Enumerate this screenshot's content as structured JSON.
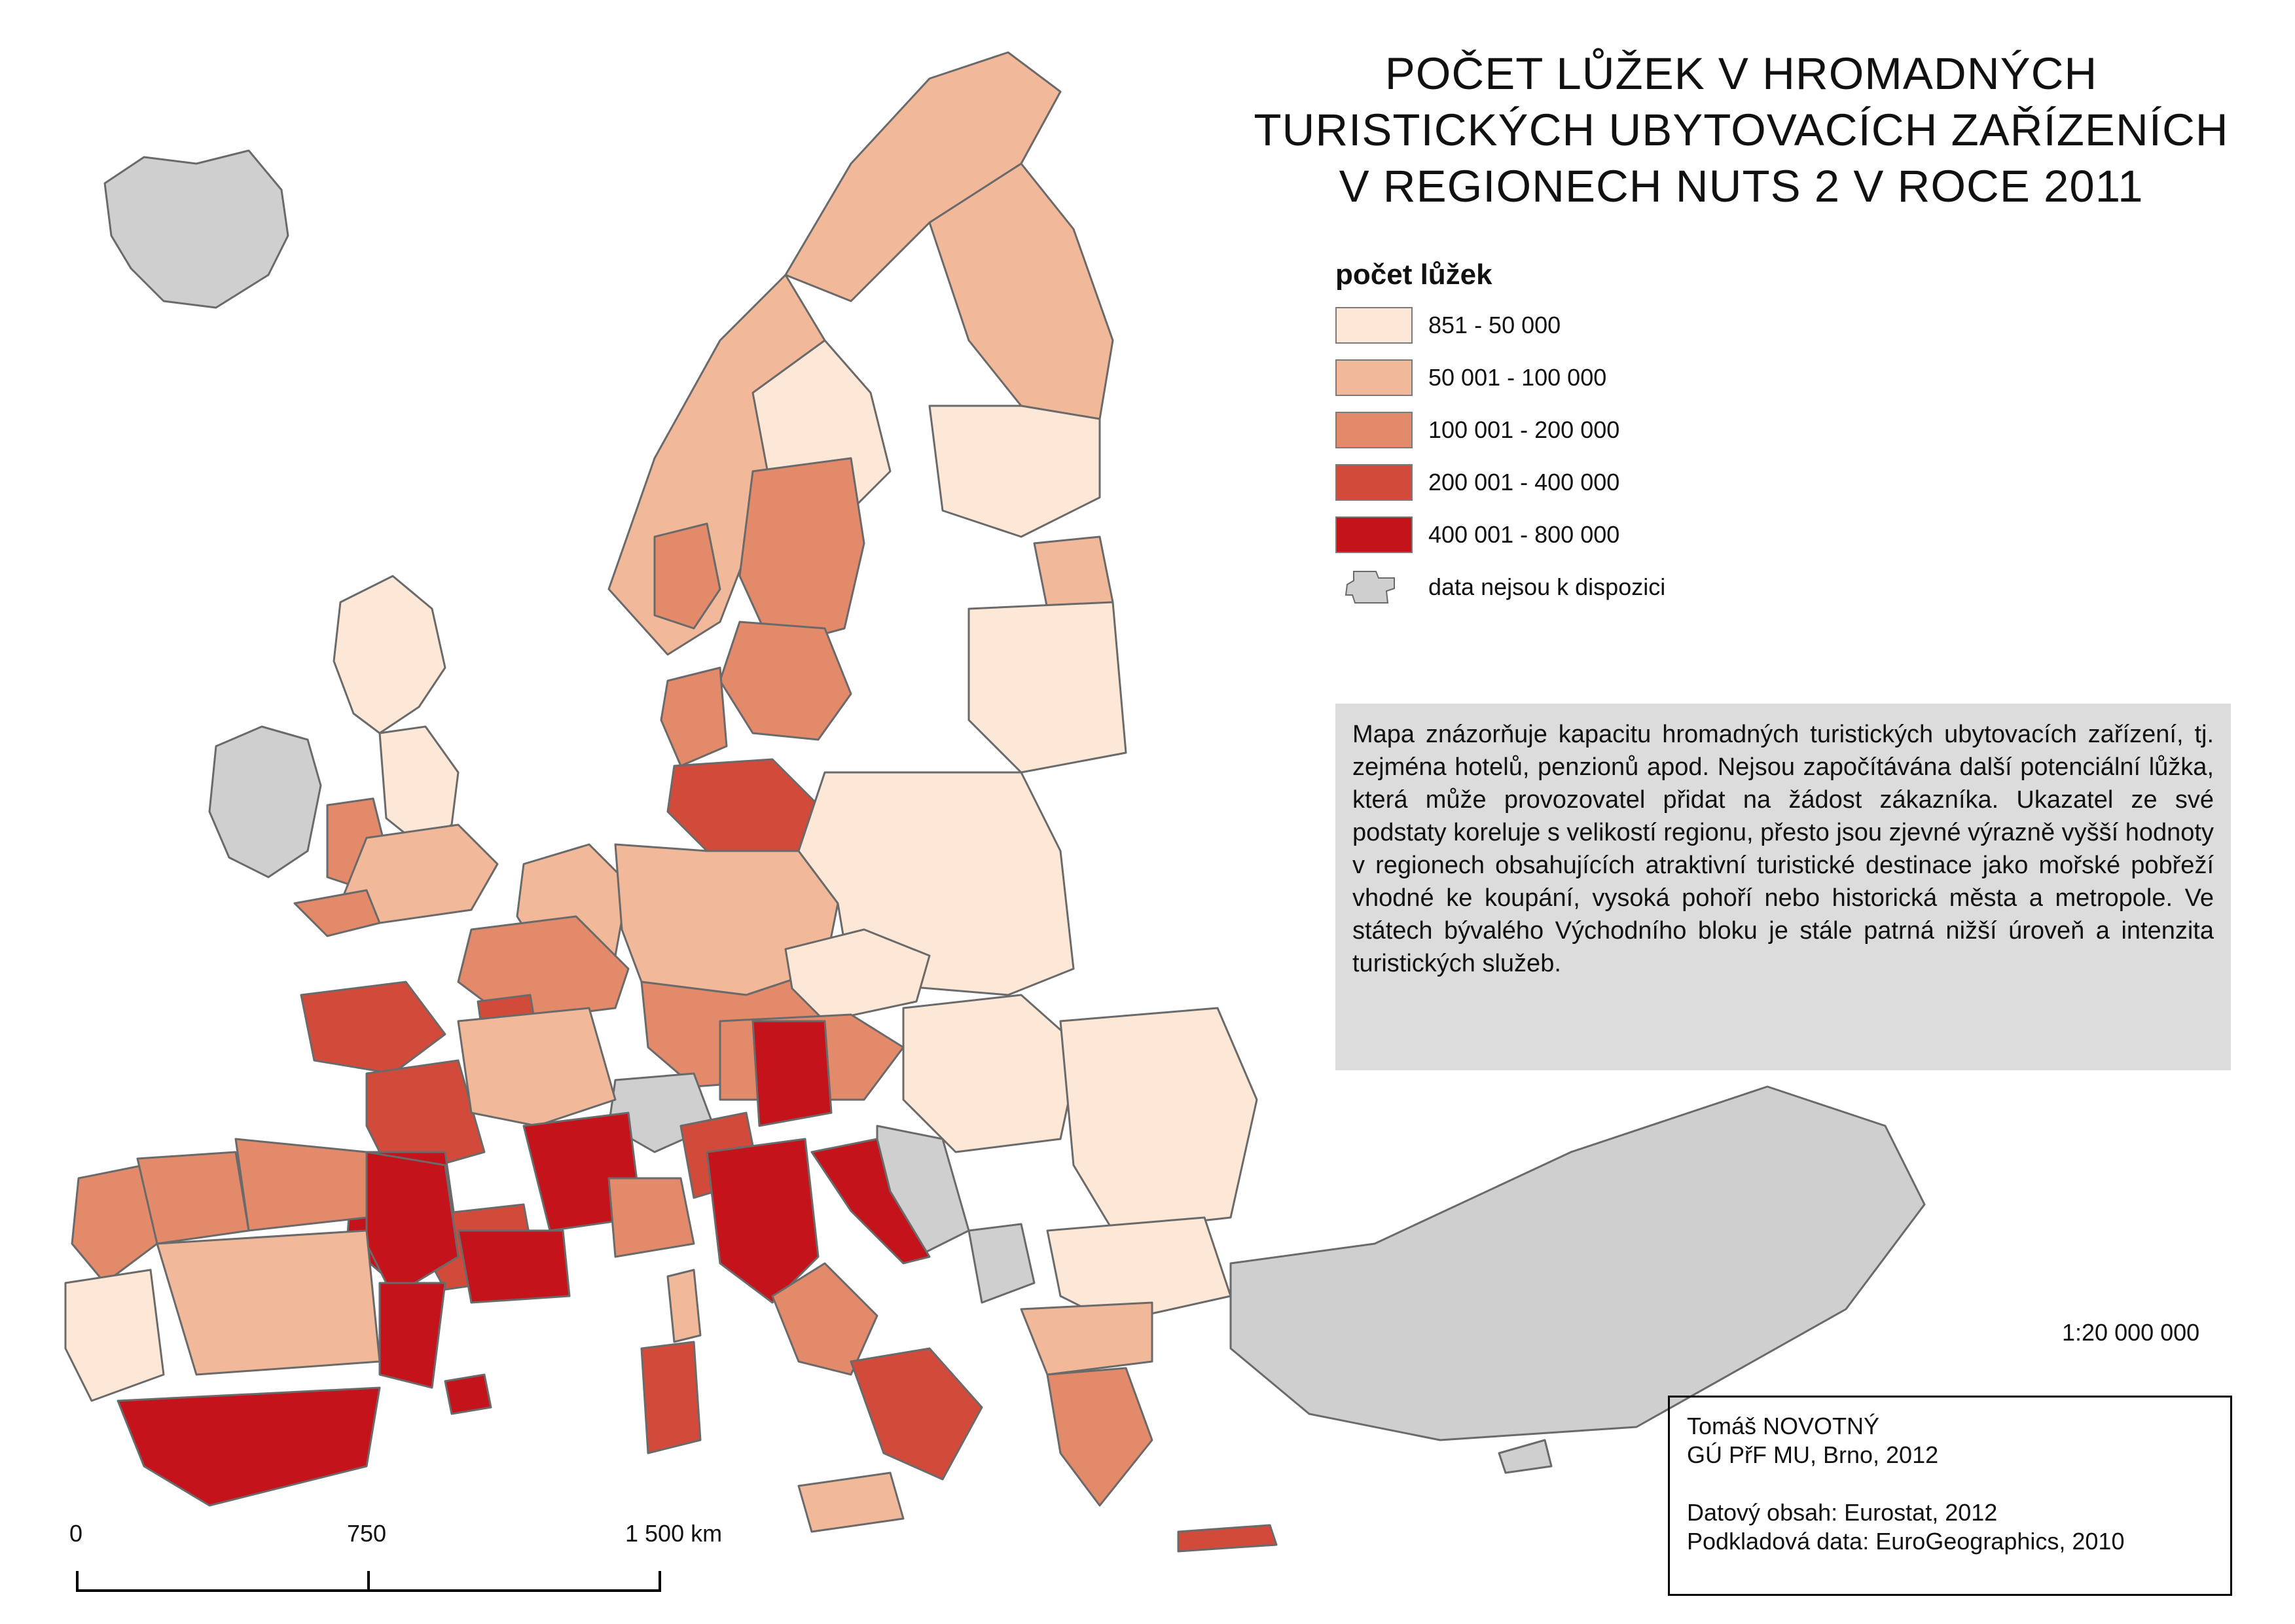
{
  "title": {
    "line1": "POČET LŮŽEK V HROMADNÝCH",
    "line2": "TURISTICKÝCH UBYTOVACÍCH ZAŘÍZENÍCH",
    "line3": "V REGIONECH NUTS 2 V ROCE 2011"
  },
  "legend": {
    "title": "počet lůžek",
    "classes": [
      {
        "label": "851 - 50 000",
        "color": "#fde8d8"
      },
      {
        "label": "50 001 - 100 000",
        "color": "#f1b99a"
      },
      {
        "label": "100 001 - 200 000",
        "color": "#e38a6a"
      },
      {
        "label": "200 001 - 400 000",
        "color": "#d24a3a"
      },
      {
        "label": "400 001 - 800 000",
        "color": "#c4131a"
      }
    ],
    "no_data": {
      "label": "data nejsou k dispozici",
      "color": "#cfcfcf"
    }
  },
  "description": "Mapa znázorňuje kapacitu hromadných turistických ubytovacích zařízení, tj. zejména hotelů, penzionů apod. Nejsou započítávána další potenciální lůžka, která může provozovatel přidat na žádost zákazníka. Ukazatel ze své podstaty koreluje s velikostí regionu, přesto jsou zjevné výrazně vyšší hodnoty v regionech obsahujících atraktivní turistické destinace jako mořské pobřeží vhodné ke koupání, vysoká pohoří nebo historická města a metropole. Ve státech bývalého Východního bloku je stále patrná nižší úroveň a intenzita turistických služeb.",
  "scale_ratio": "1:20 000 000",
  "scalebar": {
    "labels": [
      "0",
      "750",
      "1 500 km"
    ]
  },
  "credits": {
    "author": "Tomáš NOVOTNÝ",
    "institution": "GÚ PřF MU, Brno, 2012",
    "data_source": "Datový obsah: Eurostat, 2012",
    "base_data": "Podkladová data: EuroGeographics, 2010"
  }
}
